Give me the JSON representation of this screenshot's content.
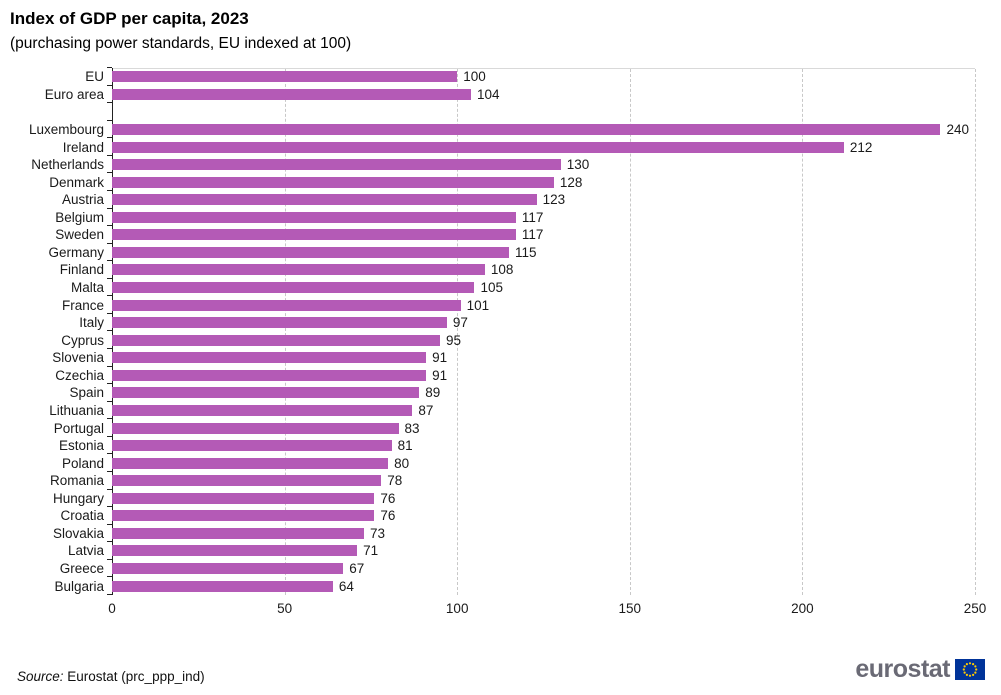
{
  "title": "Index of GDP per capita, 2023",
  "subtitle": "(purchasing power standards, EU indexed at 100)",
  "source": {
    "prefix": "Source:",
    "text": " Eurostat (prc_ppp_ind)"
  },
  "logo": {
    "text": "eurostat",
    "flag_icon": "eu-flag-icon"
  },
  "colors": {
    "bar": "#b45ab6",
    "gridline": "#c8c8c8",
    "axis": "#222222",
    "logo_text": "#6a6a75",
    "flag_blue": "#003399",
    "flag_stars": "#ffcc00"
  },
  "chart_data": {
    "type": "bar",
    "orientation": "horizontal",
    "title": "Index of GDP per capita, 2023",
    "subtitle": "(purchasing power standards, EU indexed at 100)",
    "xlabel": "",
    "ylabel": "",
    "xlim": [
      0,
      250
    ],
    "x_ticks": [
      0,
      50,
      100,
      150,
      200,
      250
    ],
    "grid": "vertical-dashed",
    "legend": "none",
    "groups": [
      {
        "name": "aggregates",
        "entries": [
          {
            "label": "EU",
            "value": 100
          },
          {
            "label": "Euro area",
            "value": 104
          }
        ]
      },
      {
        "name": "countries",
        "entries": [
          {
            "label": "Luxembourg",
            "value": 240
          },
          {
            "label": "Ireland",
            "value": 212
          },
          {
            "label": "Netherlands",
            "value": 130
          },
          {
            "label": "Denmark",
            "value": 128
          },
          {
            "label": "Austria",
            "value": 123
          },
          {
            "label": "Belgium",
            "value": 117
          },
          {
            "label": "Sweden",
            "value": 117
          },
          {
            "label": "Germany",
            "value": 115
          },
          {
            "label": "Finland",
            "value": 108
          },
          {
            "label": "Malta",
            "value": 105
          },
          {
            "label": "France",
            "value": 101
          },
          {
            "label": "Italy",
            "value": 97
          },
          {
            "label": "Cyprus",
            "value": 95
          },
          {
            "label": "Slovenia",
            "value": 91
          },
          {
            "label": "Czechia",
            "value": 91
          },
          {
            "label": "Spain",
            "value": 89
          },
          {
            "label": "Lithuania",
            "value": 87
          },
          {
            "label": "Portugal",
            "value": 83
          },
          {
            "label": "Estonia",
            "value": 81
          },
          {
            "label": "Poland",
            "value": 80
          },
          {
            "label": "Romania",
            "value": 78
          },
          {
            "label": "Hungary",
            "value": 76
          },
          {
            "label": "Croatia",
            "value": 76
          },
          {
            "label": "Slovakia",
            "value": 73
          },
          {
            "label": "Latvia",
            "value": 71
          },
          {
            "label": "Greece",
            "value": 67
          },
          {
            "label": "Bulgaria",
            "value": 64
          }
        ]
      }
    ]
  }
}
